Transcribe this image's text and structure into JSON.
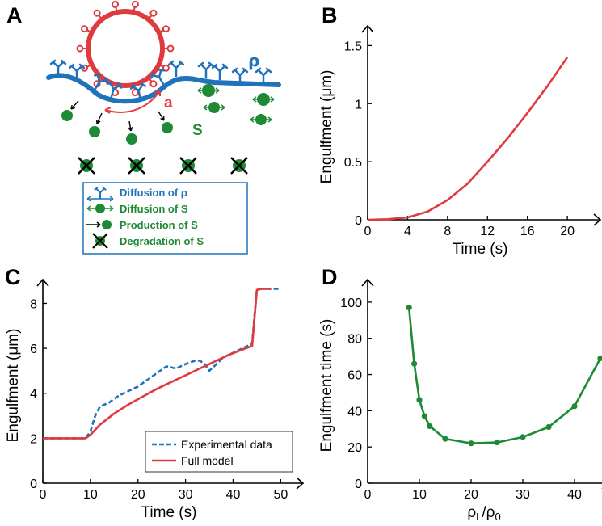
{
  "panels": {
    "A": {
      "label": "A",
      "rho_label": "ρ",
      "s_label": "S",
      "a_label": "a",
      "legend": [
        {
          "text": "Diffusion of ρ",
          "color": "#1f73bb",
          "icon": "receptor-diffusion-icon"
        },
        {
          "text": "Diffusion of S",
          "color": "#1e8a35",
          "icon": "s-diffusion-icon"
        },
        {
          "text": "Production of S",
          "color": "#1e8a35",
          "icon": "s-production-icon"
        },
        {
          "text": "Degradation of S",
          "color": "#1e8a35",
          "icon": "s-degradation-icon"
        }
      ],
      "colors": {
        "membrane": "#1f73bb",
        "bead": "#e0393e",
        "signal": "#1e8a35"
      }
    },
    "B": {
      "label": "B"
    },
    "C": {
      "label": "C"
    },
    "D": {
      "label": "D"
    }
  },
  "chart_data": [
    {
      "id": "B",
      "type": "line",
      "xlabel": "Time (s)",
      "ylabel": "Engulfment (μm)",
      "xlim": [
        0,
        22.5
      ],
      "ylim": [
        0,
        1.6
      ],
      "xticks": [
        0,
        4,
        8,
        12,
        16,
        20
      ],
      "yticks": [
        0,
        0.5,
        1,
        1.5
      ],
      "ytick_labels": [
        "0",
        "0.5",
        "1",
        "1.5"
      ],
      "series": [
        {
          "color": "#e0393e",
          "x": [
            0,
            2,
            4,
            6,
            8,
            10,
            12,
            14,
            16,
            18,
            20
          ],
          "y": [
            0,
            0.005,
            0.02,
            0.07,
            0.17,
            0.31,
            0.5,
            0.7,
            0.92,
            1.15,
            1.4
          ]
        }
      ]
    },
    {
      "id": "C",
      "type": "line",
      "xlabel": "Time (s)",
      "ylabel": "Engulfment (μm)",
      "xlim": [
        0,
        53
      ],
      "ylim": [
        0,
        8.7
      ],
      "xticks": [
        0,
        10,
        20,
        30,
        40,
        50
      ],
      "yticks": [
        0,
        2,
        4,
        6,
        8
      ],
      "legend_position": "bottom-right",
      "series": [
        {
          "name": "Experimental data",
          "color": "#1f73bb",
          "dashed": true,
          "x": [
            0,
            9,
            10,
            11,
            12,
            14,
            16,
            18,
            20,
            22,
            24,
            26,
            28,
            30,
            32,
            33,
            34,
            35,
            36,
            38,
            40,
            42,
            43,
            44,
            44.5,
            45,
            46,
            48,
            50
          ],
          "y": [
            2.0,
            2.0,
            2.3,
            3.0,
            3.4,
            3.6,
            3.9,
            4.1,
            4.3,
            4.6,
            4.9,
            5.2,
            5.1,
            5.3,
            5.45,
            5.45,
            5.3,
            5.0,
            5.2,
            5.6,
            5.8,
            6.0,
            6.1,
            6.2,
            7.5,
            8.6,
            8.65,
            8.65,
            8.65
          ]
        },
        {
          "name": "Full model",
          "color": "#e0393e",
          "dashed": false,
          "x": [
            0,
            9,
            10,
            12,
            15,
            18,
            21,
            24,
            27,
            30,
            33,
            36,
            39,
            42,
            44,
            45,
            46,
            48
          ],
          "y": [
            2.0,
            2.0,
            2.15,
            2.6,
            3.1,
            3.5,
            3.85,
            4.2,
            4.5,
            4.8,
            5.1,
            5.4,
            5.7,
            5.95,
            6.1,
            8.6,
            8.65,
            8.65
          ]
        }
      ]
    },
    {
      "id": "D",
      "type": "line",
      "xlabel": "ρL/ρ0",
      "xlabel_main": "ρ",
      "xlabel_sub1": "L",
      "xlabel_mid": "/ρ",
      "xlabel_sub2": "0",
      "ylabel": "Engulfment time (s)",
      "xlim": [
        0,
        45
      ],
      "ylim": [
        0,
        108
      ],
      "xticks": [
        0,
        10,
        20,
        30,
        40
      ],
      "yticks": [
        0,
        20,
        40,
        60,
        80,
        100
      ],
      "series": [
        {
          "color": "#1e8a35",
          "markers": true,
          "x": [
            8,
            9,
            10,
            11,
            12,
            15,
            20,
            25,
            30,
            35,
            40,
            45
          ],
          "y": [
            97,
            66,
            46,
            37,
            31.5,
            24.5,
            22,
            22.5,
            25.5,
            31,
            42.5,
            69
          ]
        }
      ]
    }
  ]
}
